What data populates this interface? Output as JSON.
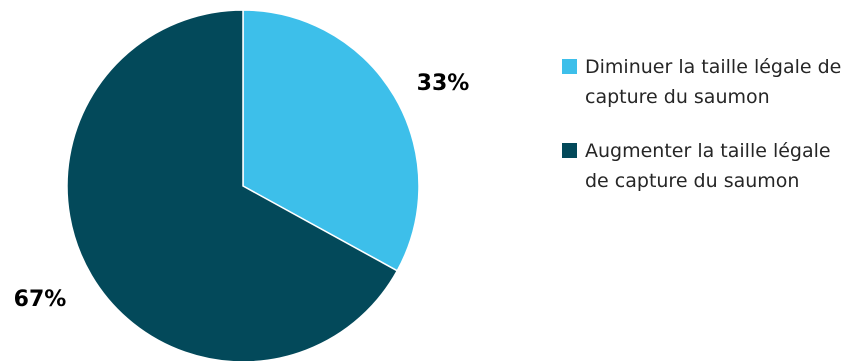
{
  "chart_data": {
    "type": "pie",
    "categories": [
      "Diminuer la taille légale de capture du saumon",
      "Augmenter la taille légale de capture du saumon"
    ],
    "values": [
      33,
      67
    ],
    "data_labels": [
      "33%",
      "67%"
    ],
    "colors": [
      "#3dbfea",
      "#03495a"
    ],
    "legend_position": "right",
    "start_angle_deg": 0,
    "direction": "clockwise"
  }
}
